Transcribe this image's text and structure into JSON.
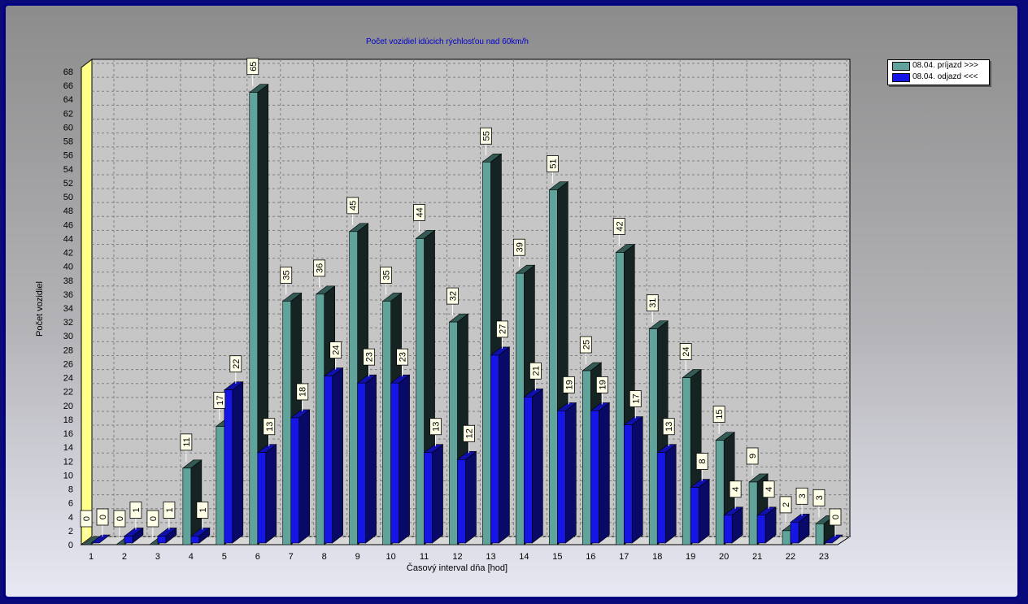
{
  "chart_data": {
    "type": "bar",
    "title": "Počet vozidiel idúcich rýchlosťou nad 60km/h",
    "xlabel": "Časový interval dňa [hod]",
    "ylabel": "Počet vozidiel",
    "categories": [
      "1",
      "2",
      "3",
      "4",
      "5",
      "6",
      "7",
      "8",
      "9",
      "10",
      "11",
      "12",
      "13",
      "14",
      "15",
      "16",
      "17",
      "18",
      "19",
      "20",
      "21",
      "22",
      "23"
    ],
    "series": [
      {
        "name": "08.04.  príjazd >>>",
        "color": "#5fa39a",
        "values": [
          0,
          0,
          0,
          11,
          17,
          65,
          35,
          36,
          45,
          35,
          44,
          32,
          55,
          39,
          51,
          25,
          42,
          31,
          24,
          15,
          9,
          2,
          3
        ]
      },
      {
        "name": "08.04.  odjazd <<<",
        "color": "#1515e6",
        "values": [
          0,
          1,
          1,
          1,
          22,
          13,
          18,
          24,
          23,
          23,
          13,
          12,
          27,
          21,
          19,
          19,
          17,
          13,
          8,
          4,
          4,
          3,
          0
        ]
      }
    ],
    "ylim": [
      0,
      68
    ],
    "yticks": [
      0,
      2,
      4,
      6,
      8,
      10,
      12,
      14,
      16,
      18,
      20,
      22,
      24,
      26,
      28,
      30,
      32,
      34,
      36,
      38,
      40,
      42,
      44,
      46,
      48,
      50,
      52,
      54,
      56,
      58,
      60,
      62,
      64,
      66,
      68
    ],
    "grid": true,
    "legend_position": "top-right"
  }
}
